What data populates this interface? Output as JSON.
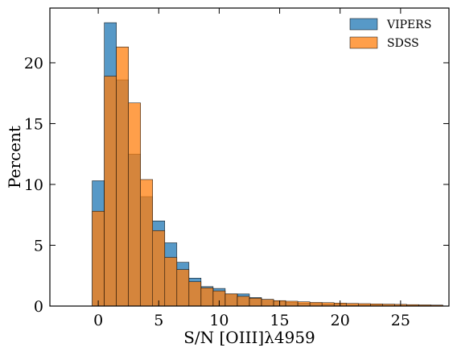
{
  "chart_data": {
    "type": "histogram",
    "xlabel": "S/N [OIII]λ4959",
    "ylabel": "Percent",
    "xlim": [
      -4,
      29
    ],
    "ylim": [
      0,
      24.5
    ],
    "xticks": [
      "0",
      "5",
      "10",
      "15",
      "20",
      "25"
    ],
    "xtick_values": [
      0,
      5,
      10,
      15,
      20,
      25
    ],
    "yticks": [
      "0",
      "5",
      "10",
      "15",
      "20"
    ],
    "ytick_values": [
      0,
      5,
      10,
      15,
      20
    ],
    "bin_edges": [
      -0.5,
      0.5,
      1.5,
      2.5,
      3.5,
      4.5,
      5.5,
      6.5,
      7.5,
      8.5,
      9.5,
      10.5,
      11.5,
      12.5,
      13.5,
      14.5,
      15.5,
      16.5,
      17.5,
      18.5,
      19.5,
      20.5,
      21.5,
      22.5,
      23.5,
      24.5,
      25.5,
      26.5,
      27.5,
      28.5
    ],
    "legend_position": "top-right",
    "grid": false,
    "series": [
      {
        "name": "VIPERS",
        "color": "#1f77b4",
        "values": [
          10.3,
          23.3,
          18.6,
          12.5,
          9.0,
          7.0,
          5.2,
          3.6,
          2.3,
          1.6,
          1.45,
          1.0,
          1.0,
          0.7,
          0.55,
          0.4,
          0.3,
          0.25,
          0.22,
          0.18,
          0.15,
          0.12,
          0.1,
          0.1,
          0.08,
          0.07,
          0.06,
          0.05,
          0.05
        ]
      },
      {
        "name": "SDSS",
        "color": "#ff7f0e",
        "values": [
          7.8,
          18.9,
          21.3,
          16.7,
          10.4,
          6.2,
          4.0,
          3.0,
          2.0,
          1.5,
          1.25,
          1.0,
          0.8,
          0.65,
          0.55,
          0.45,
          0.4,
          0.35,
          0.3,
          0.28,
          0.25,
          0.22,
          0.2,
          0.18,
          0.16,
          0.14,
          0.12,
          0.1,
          0.08
        ]
      }
    ]
  }
}
